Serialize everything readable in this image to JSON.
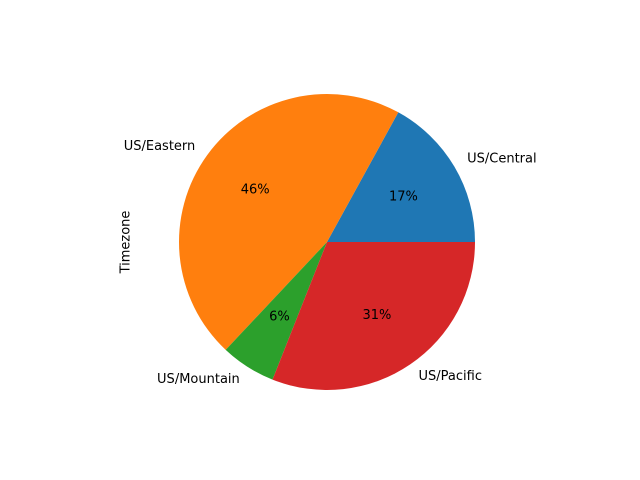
{
  "chart_data": {
    "type": "pie",
    "ylabel": "Timezone",
    "categories": [
      "US/Central",
      "US/Eastern",
      "US/Mountain",
      "US/Pacific"
    ],
    "values": [
      17,
      46,
      6,
      31
    ],
    "percent_labels": [
      "17%",
      "46%",
      "6%",
      "31%"
    ],
    "colors": [
      "#1f77b4",
      "#ff7f0e",
      "#2ca02c",
      "#d62728"
    ],
    "start_angle_deg": 0,
    "direction": "counterclockwise"
  }
}
